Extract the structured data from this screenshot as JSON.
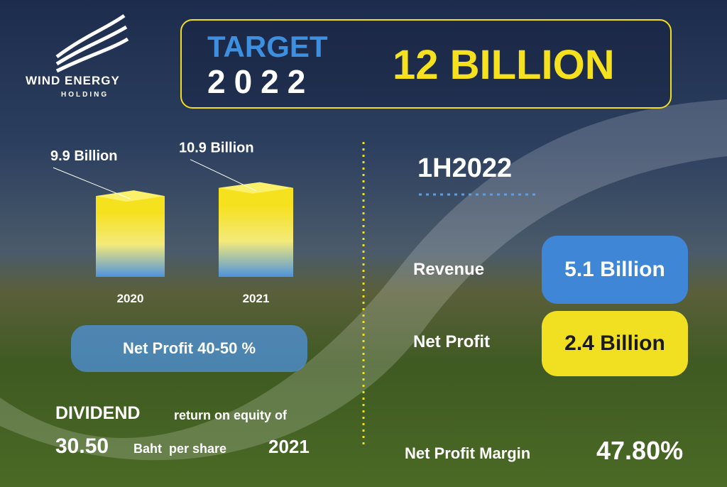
{
  "logo": {
    "name": "WIND ENERGY",
    "subtitle": "HOLDING"
  },
  "target": {
    "label": "TARGET",
    "year": "2022",
    "amount": "12 BILLION"
  },
  "history": {
    "categories": [
      "2020",
      "2021"
    ],
    "values": [
      9.9,
      10.9
    ],
    "value_labels": [
      "9.9 Billion",
      "10.9 Billion"
    ]
  },
  "net_profit_range": "Net Profit 40-50 %",
  "dividend": {
    "title": "DIVIDEND",
    "text": "return on equity of",
    "amount": "30.50",
    "unit": "Baht  per share",
    "year": "2021"
  },
  "half_year": {
    "period": "1H2022",
    "rows": [
      {
        "label": "Revenue",
        "value": "5.1 Billion"
      },
      {
        "label": "Net Profit",
        "value": "2.4 Billion"
      }
    ]
  },
  "margin": {
    "label": "Net Profit Margin",
    "value": "47.80%"
  }
}
